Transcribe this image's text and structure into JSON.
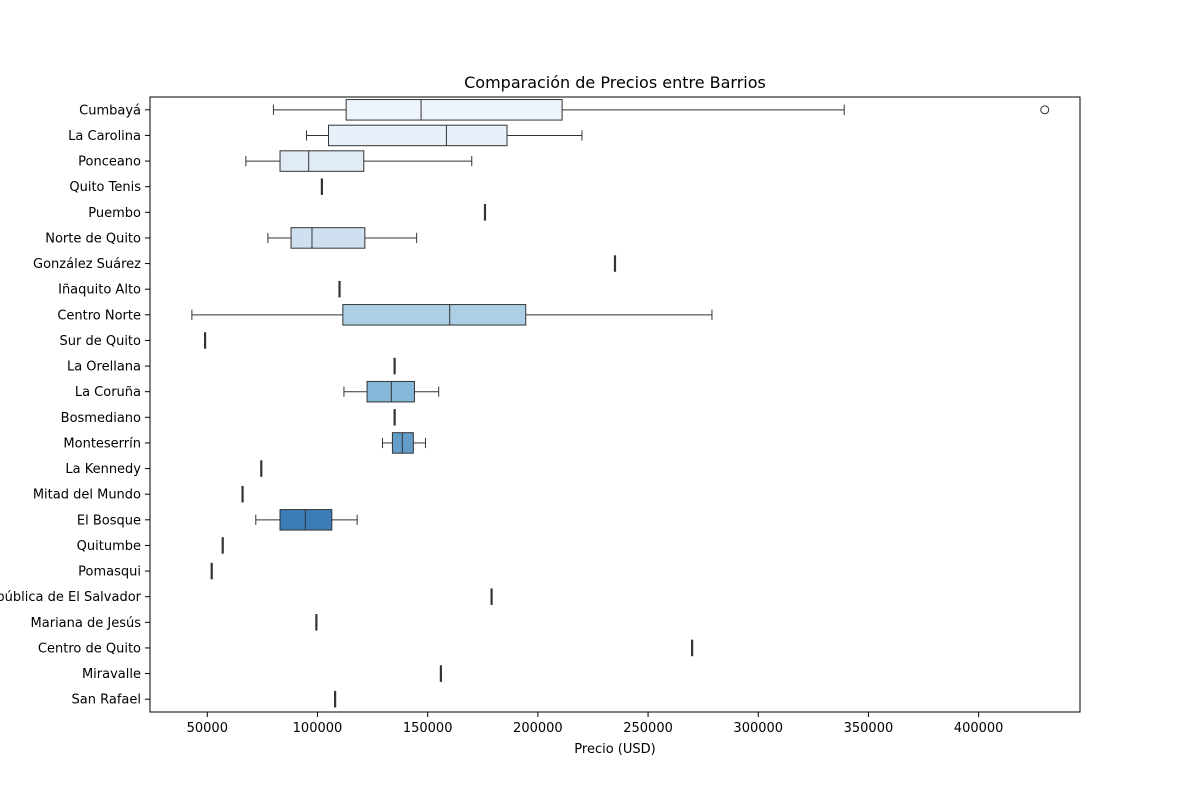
{
  "chart_data": {
    "type": "boxplot",
    "orientation": "horizontal",
    "title": "Comparación de Precios entre Barrios",
    "xlabel": "Precio (USD)",
    "ylabel": "",
    "xlim": [
      24000,
      446000
    ],
    "xticks": [
      50000,
      100000,
      150000,
      200000,
      250000,
      300000,
      350000,
      400000
    ],
    "grid": false,
    "categories": [
      {
        "name": "Cumbayá",
        "whisker_low": 80000,
        "q1": 113000,
        "median": 147000,
        "q3": 211000,
        "whisker_high": 339000,
        "outliers": [
          430000
        ],
        "color": "#eef4fb"
      },
      {
        "name": "La Carolina",
        "whisker_low": 95000,
        "q1": 105000,
        "median": 158500,
        "q3": 186000,
        "whisker_high": 220000,
        "outliers": [],
        "color": "#e8f0f9"
      },
      {
        "name": "Ponceano",
        "whisker_low": 67500,
        "q1": 83000,
        "median": 96000,
        "q3": 121000,
        "whisker_high": 170000,
        "outliers": [],
        "color": "#e1ebf6"
      },
      {
        "name": "Quito Tenis",
        "whisker_low": 102000,
        "q1": 102000,
        "median": 102000,
        "q3": 102000,
        "whisker_high": 102000,
        "outliers": [],
        "color": "#dbe7f4"
      },
      {
        "name": "Puembo",
        "whisker_low": 176000,
        "q1": 176000,
        "median": 176000,
        "q3": 176000,
        "whisker_high": 176000,
        "outliers": [],
        "color": "#d6e5f3"
      },
      {
        "name": "Norte de Quito",
        "whisker_low": 77500,
        "q1": 88000,
        "median": 97500,
        "q3": 121500,
        "whisker_high": 145000,
        "outliers": [],
        "color": "#cfe0f1"
      },
      {
        "name": "González Suárez",
        "whisker_low": 235000,
        "q1": 235000,
        "median": 235000,
        "q3": 235000,
        "whisker_high": 235000,
        "outliers": [],
        "color": "#c8dcee"
      },
      {
        "name": "Iñaquito Alto",
        "whisker_low": 110000,
        "q1": 110000,
        "median": 110000,
        "q3": 110000,
        "whisker_high": 110000,
        "outliers": [],
        "color": "#bdd7ea"
      },
      {
        "name": "Centro Norte",
        "whisker_low": 43000,
        "q1": 111500,
        "median": 160000,
        "q3": 194500,
        "whisker_high": 279000,
        "outliers": [],
        "color": "#accfe5"
      },
      {
        "name": "Sur de Quito",
        "whisker_low": 49000,
        "q1": 49000,
        "median": 49000,
        "q3": 49000,
        "whisker_high": 49000,
        "outliers": [],
        "color": "#a0c8e1"
      },
      {
        "name": "La Orellana",
        "whisker_low": 135000,
        "q1": 135000,
        "median": 135000,
        "q3": 135000,
        "whisker_high": 135000,
        "outliers": [],
        "color": "#93c1dd"
      },
      {
        "name": "La Coruña",
        "whisker_low": 112000,
        "q1": 122500,
        "median": 133500,
        "q3": 144000,
        "whisker_high": 155000,
        "outliers": [],
        "color": "#85b7d9"
      },
      {
        "name": "Bosmediano",
        "whisker_low": 135000,
        "q1": 135000,
        "median": 135000,
        "q3": 135000,
        "whisker_high": 135000,
        "outliers": [],
        "color": "#74aad2"
      },
      {
        "name": "Monteserrín",
        "whisker_low": 129500,
        "q1": 134000,
        "median": 138500,
        "q3": 143500,
        "whisker_high": 149000,
        "outliers": [],
        "color": "#639ecb"
      },
      {
        "name": "La Kennedy",
        "whisker_low": 74500,
        "q1": 74500,
        "median": 74500,
        "q3": 74500,
        "whisker_high": 74500,
        "outliers": [],
        "color": "#5593c5"
      },
      {
        "name": "Mitad del Mundo",
        "whisker_low": 66000,
        "q1": 66000,
        "median": 66000,
        "q3": 66000,
        "whisker_high": 66000,
        "outliers": [],
        "color": "#4a88bf"
      },
      {
        "name": "El Bosque",
        "whisker_low": 72000,
        "q1": 83000,
        "median": 94500,
        "q3": 106500,
        "whisker_high": 118000,
        "outliers": [],
        "color": "#3c7db8"
      },
      {
        "name": "Quitumbe",
        "whisker_low": 57000,
        "q1": 57000,
        "median": 57000,
        "q3": 57000,
        "whisker_high": 57000,
        "outliers": [],
        "color": "#3171b0"
      },
      {
        "name": "Pomasqui",
        "whisker_low": 52000,
        "q1": 52000,
        "median": 52000,
        "q3": 52000,
        "whisker_high": 52000,
        "outliers": [],
        "color": "#2767a8"
      },
      {
        "name": "República de El Salvador",
        "whisker_low": 179000,
        "q1": 179000,
        "median": 179000,
        "q3": 179000,
        "whisker_high": 179000,
        "outliers": [],
        "color": "#1d5c9f"
      },
      {
        "name": "Mariana de Jesús",
        "whisker_low": 99500,
        "q1": 99500,
        "median": 99500,
        "q3": 99500,
        "whisker_high": 99500,
        "outliers": [],
        "color": "#155194"
      },
      {
        "name": "Centro de Quito",
        "whisker_low": 270000,
        "q1": 270000,
        "median": 270000,
        "q3": 270000,
        "whisker_high": 270000,
        "outliers": [],
        "color": "#0e4787"
      },
      {
        "name": "Miravalle",
        "whisker_low": 156000,
        "q1": 156000,
        "median": 156000,
        "q3": 156000,
        "whisker_high": 156000,
        "outliers": [],
        "color": "#0a3d79"
      },
      {
        "name": "San Rafael",
        "whisker_low": 108000,
        "q1": 108000,
        "median": 108000,
        "q3": 108000,
        "whisker_high": 108000,
        "outliers": [],
        "color": "#08306b"
      }
    ]
  }
}
